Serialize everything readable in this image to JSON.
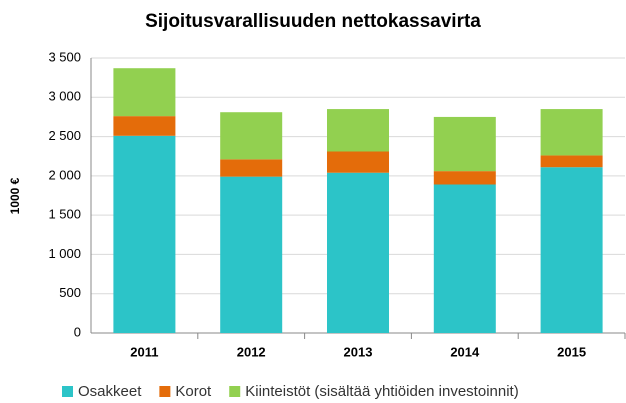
{
  "chart_data": {
    "type": "stacked_bar",
    "title": "Sijoitusvarallisuuden nettokassavirta",
    "y_label": "1000 €",
    "categories": [
      "2011",
      "2012",
      "2013",
      "2014",
      "2015"
    ],
    "series": [
      {
        "name": "Osakkeet",
        "color": "#2cc4c8",
        "values": [
          2510,
          1990,
          2040,
          1890,
          2110
        ]
      },
      {
        "name": "Korot",
        "color": "#e46c0a",
        "values": [
          250,
          220,
          270,
          170,
          150
        ]
      },
      {
        "name": "Kiinteistöt (sisältää yhtiöiden investoinnit)",
        "color": "#92d050",
        "values": [
          610,
          600,
          540,
          690,
          590
        ]
      }
    ],
    "ylim": [
      0,
      3500
    ],
    "yticks": [
      0,
      500,
      {
        "value": 1000,
        "label": "1 000"
      },
      {
        "value": 1500,
        "label": "1 500"
      },
      {
        "value": 2000,
        "label": "2 000"
      },
      {
        "value": 2500,
        "label": "2 500"
      },
      {
        "value": 3000,
        "label": "3 000"
      },
      {
        "value": 3500,
        "label": "3 500"
      }
    ],
    "grid": true,
    "legend": "bottom"
  }
}
